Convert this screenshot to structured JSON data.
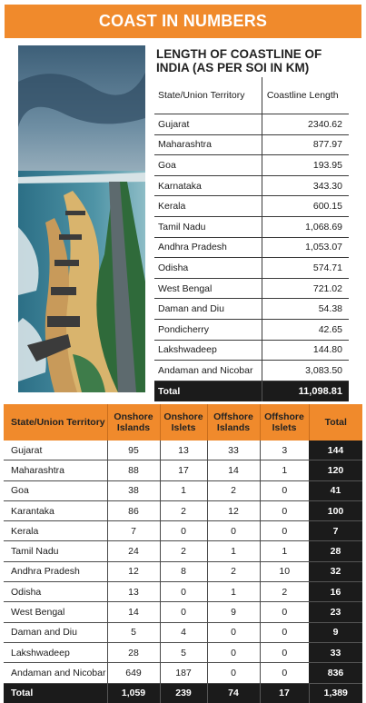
{
  "banner": {
    "title": "COAST IN NUMBERS"
  },
  "coastline": {
    "title": "LENGTH OF COASTLINE OF INDIA (AS PER SOI IN KM)",
    "col_state": "State/Union Territory",
    "col_length": "Coastline Length",
    "rows": [
      {
        "state": "Gujarat",
        "length": "2340.62"
      },
      {
        "state": "Maharashtra",
        "length": "877.97"
      },
      {
        "state": "Goa",
        "length": "193.95"
      },
      {
        "state": "Karnataka",
        "length": "343.30"
      },
      {
        "state": "Kerala",
        "length": "600.15"
      },
      {
        "state": "Tamil Nadu",
        "length": "1,068.69"
      },
      {
        "state": "Andhra Pradesh",
        "length": "1,053.07"
      },
      {
        "state": "Odisha",
        "length": "574.71"
      },
      {
        "state": "West Bengal",
        "length": "721.02"
      },
      {
        "state": "Daman and Diu",
        "length": "54.38"
      },
      {
        "state": "Pondicherry",
        "length": "42.65"
      },
      {
        "state": "Lakshwadeep",
        "length": "144.80"
      },
      {
        "state": "Andaman and Nicobar",
        "length": "3,083.50"
      }
    ],
    "total_label": "Total",
    "total_value": "11,098.81"
  },
  "islands": {
    "headers": [
      "State/Union Territory",
      "Onshore Islands",
      "Onshore Islets",
      "Offshore Islands",
      "Offshore Islets",
      "Total"
    ],
    "rows": [
      [
        "Gujarat",
        "95",
        "13",
        "33",
        "3",
        "144"
      ],
      [
        "Maharashtra",
        "88",
        "17",
        "14",
        "1",
        "120"
      ],
      [
        "Goa",
        "38",
        "1",
        "2",
        "0",
        "41"
      ],
      [
        "Karantaka",
        "86",
        "2",
        "12",
        "0",
        "100"
      ],
      [
        "Kerala",
        "7",
        "0",
        "0",
        "0",
        "7"
      ],
      [
        "Tamil Nadu",
        "24",
        "2",
        "1",
        "1",
        "28"
      ],
      [
        "Andhra Pradesh",
        "12",
        "8",
        "2",
        "10",
        "32"
      ],
      [
        "Odisha",
        "13",
        "0",
        "1",
        "2",
        "16"
      ],
      [
        "West Bengal",
        "14",
        "0",
        "9",
        "0",
        "23"
      ],
      [
        "Daman and Diu",
        "5",
        "4",
        "0",
        "0",
        "9"
      ],
      [
        "Lakshwadeep",
        "28",
        "5",
        "0",
        "0",
        "33"
      ],
      [
        "Andaman and Nicobar",
        "649",
        "187",
        "0",
        "0",
        "836"
      ]
    ],
    "total": [
      "Total",
      "1,059",
      "239",
      "74",
      "17",
      "1,389"
    ]
  }
}
